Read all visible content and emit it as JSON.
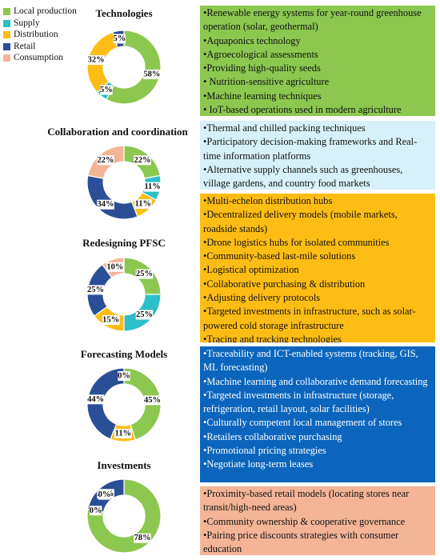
{
  "colors": {
    "Local production": "#8cc750",
    "Supply": "#2cbfc9",
    "Distribution": "#fdbd14",
    "Retail": "#2b4f96",
    "Consumption": "#f3b596"
  },
  "legend": [
    "Local production",
    "Supply",
    "Distribution",
    "Retail",
    "Consumption"
  ],
  "chart_data": [
    {
      "type": "pie",
      "title": "Technologies",
      "categories": [
        "Local production",
        "Supply",
        "Distribution",
        "Retail",
        "Consumption"
      ],
      "values": [
        58,
        5,
        32,
        5,
        0
      ],
      "labels": [
        "58%",
        "5%",
        "32%",
        "5%",
        ""
      ]
    },
    {
      "type": "pie",
      "title": "Collaboration and coordination",
      "categories": [
        "Local production",
        "Supply",
        "Distribution",
        "Retail",
        "Consumption"
      ],
      "values": [
        22,
        11,
        11,
        34,
        22
      ],
      "labels": [
        "22%",
        "11%",
        "11%",
        "34%",
        "22%"
      ]
    },
    {
      "type": "pie",
      "title": "Redesigning PFSC",
      "categories": [
        "Local production",
        "Supply",
        "Distribution",
        "Retail",
        "Consumption"
      ],
      "values": [
        25,
        25,
        15,
        25,
        10
      ],
      "labels": [
        "25%",
        "25%",
        "15%",
        "25%",
        "10%"
      ]
    },
    {
      "type": "pie",
      "title": "Forecasting Models",
      "categories": [
        "Local production",
        "Supply",
        "Distribution",
        "Retail",
        "Consumption"
      ],
      "values": [
        45,
        0,
        11,
        44,
        0
      ],
      "labels": [
        "45%",
        "",
        "11%",
        "44%",
        "0%"
      ]
    },
    {
      "type": "pie",
      "title": "Investments",
      "categories": [
        "Local production",
        "Supply",
        "Distribution",
        "Retail",
        "Consumption"
      ],
      "values": [
        78,
        0,
        0,
        22,
        0
      ],
      "labels": [
        "78%",
        "",
        "0%",
        "22%",
        "0%"
      ]
    }
  ],
  "panels": [
    {
      "color": "#8cc750",
      "dark": false,
      "items": [
        "Renewable energy systems for year-round greenhouse operation (solar, geothermal)",
        "Aquaponics technology",
        "Agroecological assessments",
        "Providing high-quality seeds",
        " Nutrition-sensitive agriculture",
        "Machine learning techniques",
        " IoT-based operations used in modern agriculture"
      ]
    },
    {
      "color": "#d6f1fa",
      "dark": false,
      "items": [
        "Thermal and chilled packing techniques",
        "Participatory decision-making frameworks and Real-time information platforms",
        "Alternative supply channels such as greenhouses, village gardens, and country food markets"
      ]
    },
    {
      "color": "#fdbd14",
      "dark": false,
      "items": [
        "Multi-echelon distribution hubs",
        "Decentralized delivery models (mobile markets, roadside stands)",
        "Drone logistics hubs for isolated communities",
        "Community-based last-mile solutions",
        "Logistical optimization",
        "Collaborative purchasing & distribution",
        "Adjusting delivery protocols",
        "Targeted investments in infrastructure, such as solar-powered cold storage infrastructure",
        "Tracing and tracking technologies"
      ]
    },
    {
      "color": "#0b65bd",
      "dark": true,
      "items": [
        "Traceability and ICT-enabled systems (tracking, GIS, ML forecasting)",
        "Machine learning and collaborative demand forecasting",
        "Targeted investments in infrastructure (storage, refrigeration, retail layout, solar facilities)",
        "Culturally competent local management of stores",
        "Retailers collaborative purchasing",
        "Promotional pricing strategies",
        "Negotiate long-term leases"
      ]
    },
    {
      "color": "#f3b596",
      "dark": false,
      "items": [
        "Proximity-based retail models (locating stores near transit/high-need areas)",
        "Community ownership & cooperative governance",
        "Pairing price discounts strategies with consumer education"
      ]
    }
  ]
}
